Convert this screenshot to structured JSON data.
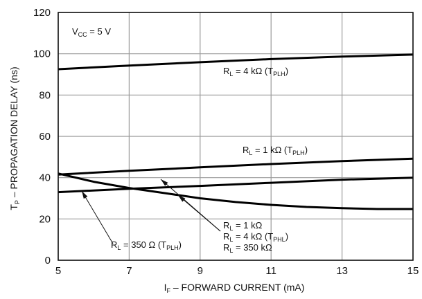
{
  "chart_data": {
    "type": "line",
    "xlabel": "I",
    "xlabel_sub": "F",
    "xlabel_rest": " – FORWARD CURRENT (mA)",
    "ylabel": "T",
    "ylabel_sub": "P",
    "ylabel_rest": " – PROPAGATION DELAY (ns)",
    "xlim": [
      5,
      15
    ],
    "ylim": [
      0,
      120
    ],
    "xticks": [
      5,
      7,
      9,
      11,
      13,
      15
    ],
    "yticks": [
      0,
      20,
      40,
      60,
      80,
      100,
      120
    ],
    "grid": true,
    "condition": {
      "a": "V",
      "sub": "CC",
      "b": " = 5 V"
    },
    "series": [
      {
        "name": "R_L = 4 kΩ (T_PLH)",
        "points": [
          [
            5,
            92.5
          ],
          [
            7,
            94.3
          ],
          [
            9,
            95.9
          ],
          [
            11,
            97.4
          ],
          [
            13,
            98.6
          ],
          [
            15,
            99.6
          ]
        ]
      },
      {
        "name": "R_L = 1 kΩ (T_PLH)",
        "points": [
          [
            5,
            41.5
          ],
          [
            7,
            43.3
          ],
          [
            9,
            45.0
          ],
          [
            11,
            46.6
          ],
          [
            13,
            48.0
          ],
          [
            15,
            49.2
          ]
        ]
      },
      {
        "name": "R_L = 350 Ω (T_PLH)",
        "points": [
          [
            5,
            33.0
          ],
          [
            7,
            34.6
          ],
          [
            9,
            36.0
          ],
          [
            11,
            37.5
          ],
          [
            13,
            39.0
          ],
          [
            15,
            40.0
          ]
        ]
      },
      {
        "name": "R_L = 1 kΩ, 4 kΩ, 350 kΩ (T_PHL)",
        "points": [
          [
            5,
            42.0
          ],
          [
            6,
            38.0
          ],
          [
            7,
            35.0
          ],
          [
            8,
            32.5
          ],
          [
            9,
            30.0
          ],
          [
            10,
            28.2
          ],
          [
            11,
            26.8
          ],
          [
            12,
            25.8
          ],
          [
            13,
            25.2
          ],
          [
            14,
            24.8
          ],
          [
            15,
            24.8
          ]
        ]
      }
    ],
    "annotations": [
      {
        "id": "r4k-plh",
        "parts": [
          [
            "R",
            ""
          ],
          [
            "L",
            "sub"
          ],
          [
            " = 4 kΩ  (T",
            ""
          ],
          [
            "PLH",
            "sub"
          ],
          [
            ")",
            ""
          ]
        ]
      },
      {
        "id": "r1k-plh",
        "parts": [
          [
            "R",
            ""
          ],
          [
            "L",
            "sub"
          ],
          [
            " = 1 kΩ  (T",
            ""
          ],
          [
            "PLH",
            "sub"
          ],
          [
            ")",
            ""
          ]
        ]
      },
      {
        "id": "r350-plh",
        "parts": [
          [
            "R",
            ""
          ],
          [
            "L",
            "sub"
          ],
          [
            " = 350 Ω (T",
            ""
          ],
          [
            "PLH",
            "sub"
          ],
          [
            ")",
            ""
          ]
        ]
      },
      {
        "id": "phl-1",
        "parts": [
          [
            "R",
            ""
          ],
          [
            "L",
            "sub"
          ],
          [
            " = 1 kΩ",
            ""
          ]
        ]
      },
      {
        "id": "phl-2",
        "parts": [
          [
            "R",
            ""
          ],
          [
            "L",
            "sub"
          ],
          [
            " = 4 kΩ  (T",
            ""
          ],
          [
            "PHL",
            "sub"
          ],
          [
            ")",
            ""
          ]
        ]
      },
      {
        "id": "phl-3",
        "parts": [
          [
            "R",
            ""
          ],
          [
            "L",
            "sub"
          ],
          [
            " = 350 kΩ",
            ""
          ]
        ]
      }
    ]
  }
}
